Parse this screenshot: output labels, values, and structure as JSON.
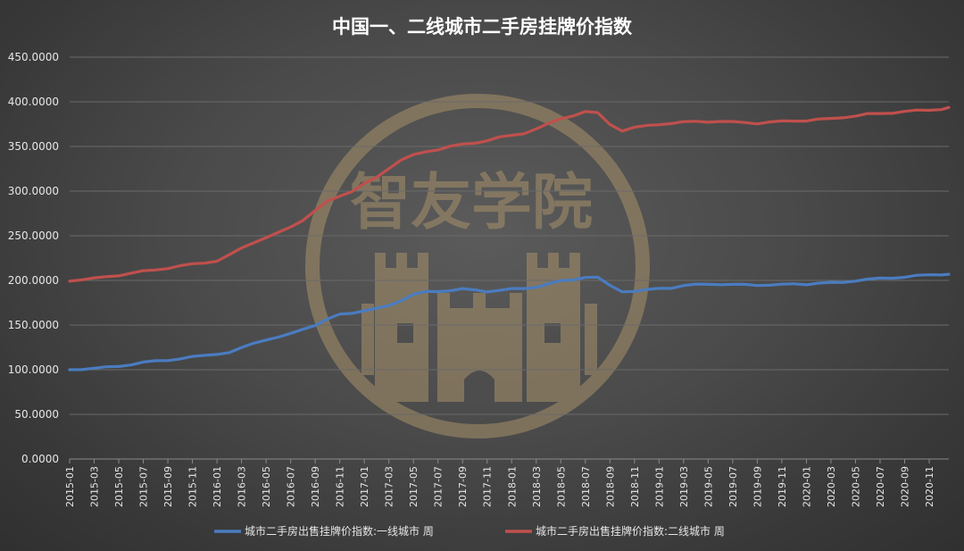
{
  "chart_data": {
    "type": "line",
    "title": "中国一、二线城市二手房挂牌价指数",
    "ylim": [
      0,
      450
    ],
    "yticks": [
      "0.0000",
      "50.0000",
      "100.0000",
      "150.0000",
      "200.0000",
      "250.0000",
      "300.0000",
      "350.0000",
      "400.0000",
      "450.0000"
    ],
    "x_categories": [
      "2015-01",
      "2015-03",
      "2015-05",
      "2015-07",
      "2015-09",
      "2015-11",
      "2016-01",
      "2016-03",
      "2016-05",
      "2016-07",
      "2016-09",
      "2016-11",
      "2017-01",
      "2017-03",
      "2017-05",
      "2017-07",
      "2017-09",
      "2017-11",
      "2018-01",
      "2018-03",
      "2018-05",
      "2018-07",
      "2018-09",
      "2018-11",
      "2019-01",
      "2019-03",
      "2019-05",
      "2019-07",
      "2019-09",
      "2019-11",
      "2020-01",
      "2020-03",
      "2020-05",
      "2020-07",
      "2020-09",
      "2020-11"
    ],
    "x_end": 35.8,
    "grid": true,
    "legend_position": "bottom",
    "series": [
      {
        "name": "城市二手房出售挂牌价指数:一线城市 周",
        "color": "#4a7cc0",
        "x": [
          0,
          0.5,
          1,
          1.5,
          2,
          2.5,
          3,
          3.5,
          4,
          4.5,
          5,
          5.5,
          6,
          6.5,
          7,
          7.5,
          8,
          8.5,
          9,
          9.5,
          10,
          10.5,
          11,
          11.5,
          12,
          12.5,
          13,
          13.5,
          14,
          14.5,
          15,
          15.5,
          16,
          16.5,
          17,
          17.5,
          18,
          18.5,
          19,
          19.5,
          20,
          20.5,
          21,
          21.5,
          22,
          22.5,
          23,
          23.5,
          24,
          24.5,
          25,
          25.5,
          26,
          26.5,
          27,
          27.5,
          28,
          28.5,
          29,
          29.5,
          30,
          30.5,
          31,
          31.5,
          32,
          32.5,
          33,
          33.5,
          34,
          34.5,
          35,
          35.5,
          35.8
        ],
        "values": [
          100,
          101,
          101.5,
          102.5,
          104,
          106,
          108,
          109.5,
          111,
          112.5,
          114,
          116,
          118,
          119,
          124,
          130,
          134,
          136,
          140,
          146,
          150,
          156,
          162,
          164,
          166,
          168,
          172,
          178,
          184,
          187,
          188,
          189,
          190,
          189,
          188,
          189,
          190,
          191,
          193,
          196,
          199,
          201,
          204,
          203,
          194,
          188,
          188,
          189,
          191,
          192,
          194,
          195,
          196,
          196,
          195,
          195,
          195,
          195,
          195,
          196,
          196,
          197,
          197,
          198,
          200,
          201,
          202,
          203,
          204,
          205,
          206,
          207,
          207
        ]
      },
      {
        "name": "城市二手房出售挂牌价指数:二线城市 周",
        "color": "#c0504d",
        "x": [
          0,
          0.5,
          1,
          1.5,
          2,
          2.5,
          3,
          3.5,
          4,
          4.5,
          5,
          5.5,
          6,
          6.5,
          7,
          7.5,
          8,
          8.5,
          9,
          9.5,
          10,
          10.5,
          11,
          11.5,
          12,
          12.5,
          13,
          13.5,
          14,
          14.5,
          15,
          15.5,
          16,
          16.5,
          17,
          17.5,
          18,
          18.5,
          19,
          19.5,
          20,
          20.5,
          21,
          21.5,
          22,
          22.5,
          23,
          23.5,
          24,
          24.5,
          25,
          25.5,
          26,
          26.5,
          27,
          27.5,
          28,
          28.5,
          29,
          29.5,
          30,
          30.5,
          31,
          31.5,
          32,
          32.5,
          33,
          33.5,
          34,
          34.5,
          35,
          35.5,
          35.8
        ],
        "values": [
          200,
          201,
          202,
          204,
          206,
          208,
          210,
          212,
          214,
          216,
          218,
          220,
          222,
          228,
          236,
          243,
          248,
          253,
          260,
          268,
          278,
          288,
          295,
          300,
          308,
          315,
          326,
          335,
          340,
          344,
          347,
          350,
          352,
          354,
          357,
          360,
          362,
          365,
          370,
          375,
          381,
          385,
          389,
          387,
          375,
          368,
          371,
          373,
          375,
          376,
          377,
          378,
          378,
          378,
          377,
          377,
          376,
          377,
          378,
          379,
          379,
          380,
          381,
          383,
          384,
          386,
          387,
          388,
          389,
          390,
          391,
          392,
          393
        ]
      }
    ]
  },
  "watermark": {
    "text": "智友学院"
  }
}
